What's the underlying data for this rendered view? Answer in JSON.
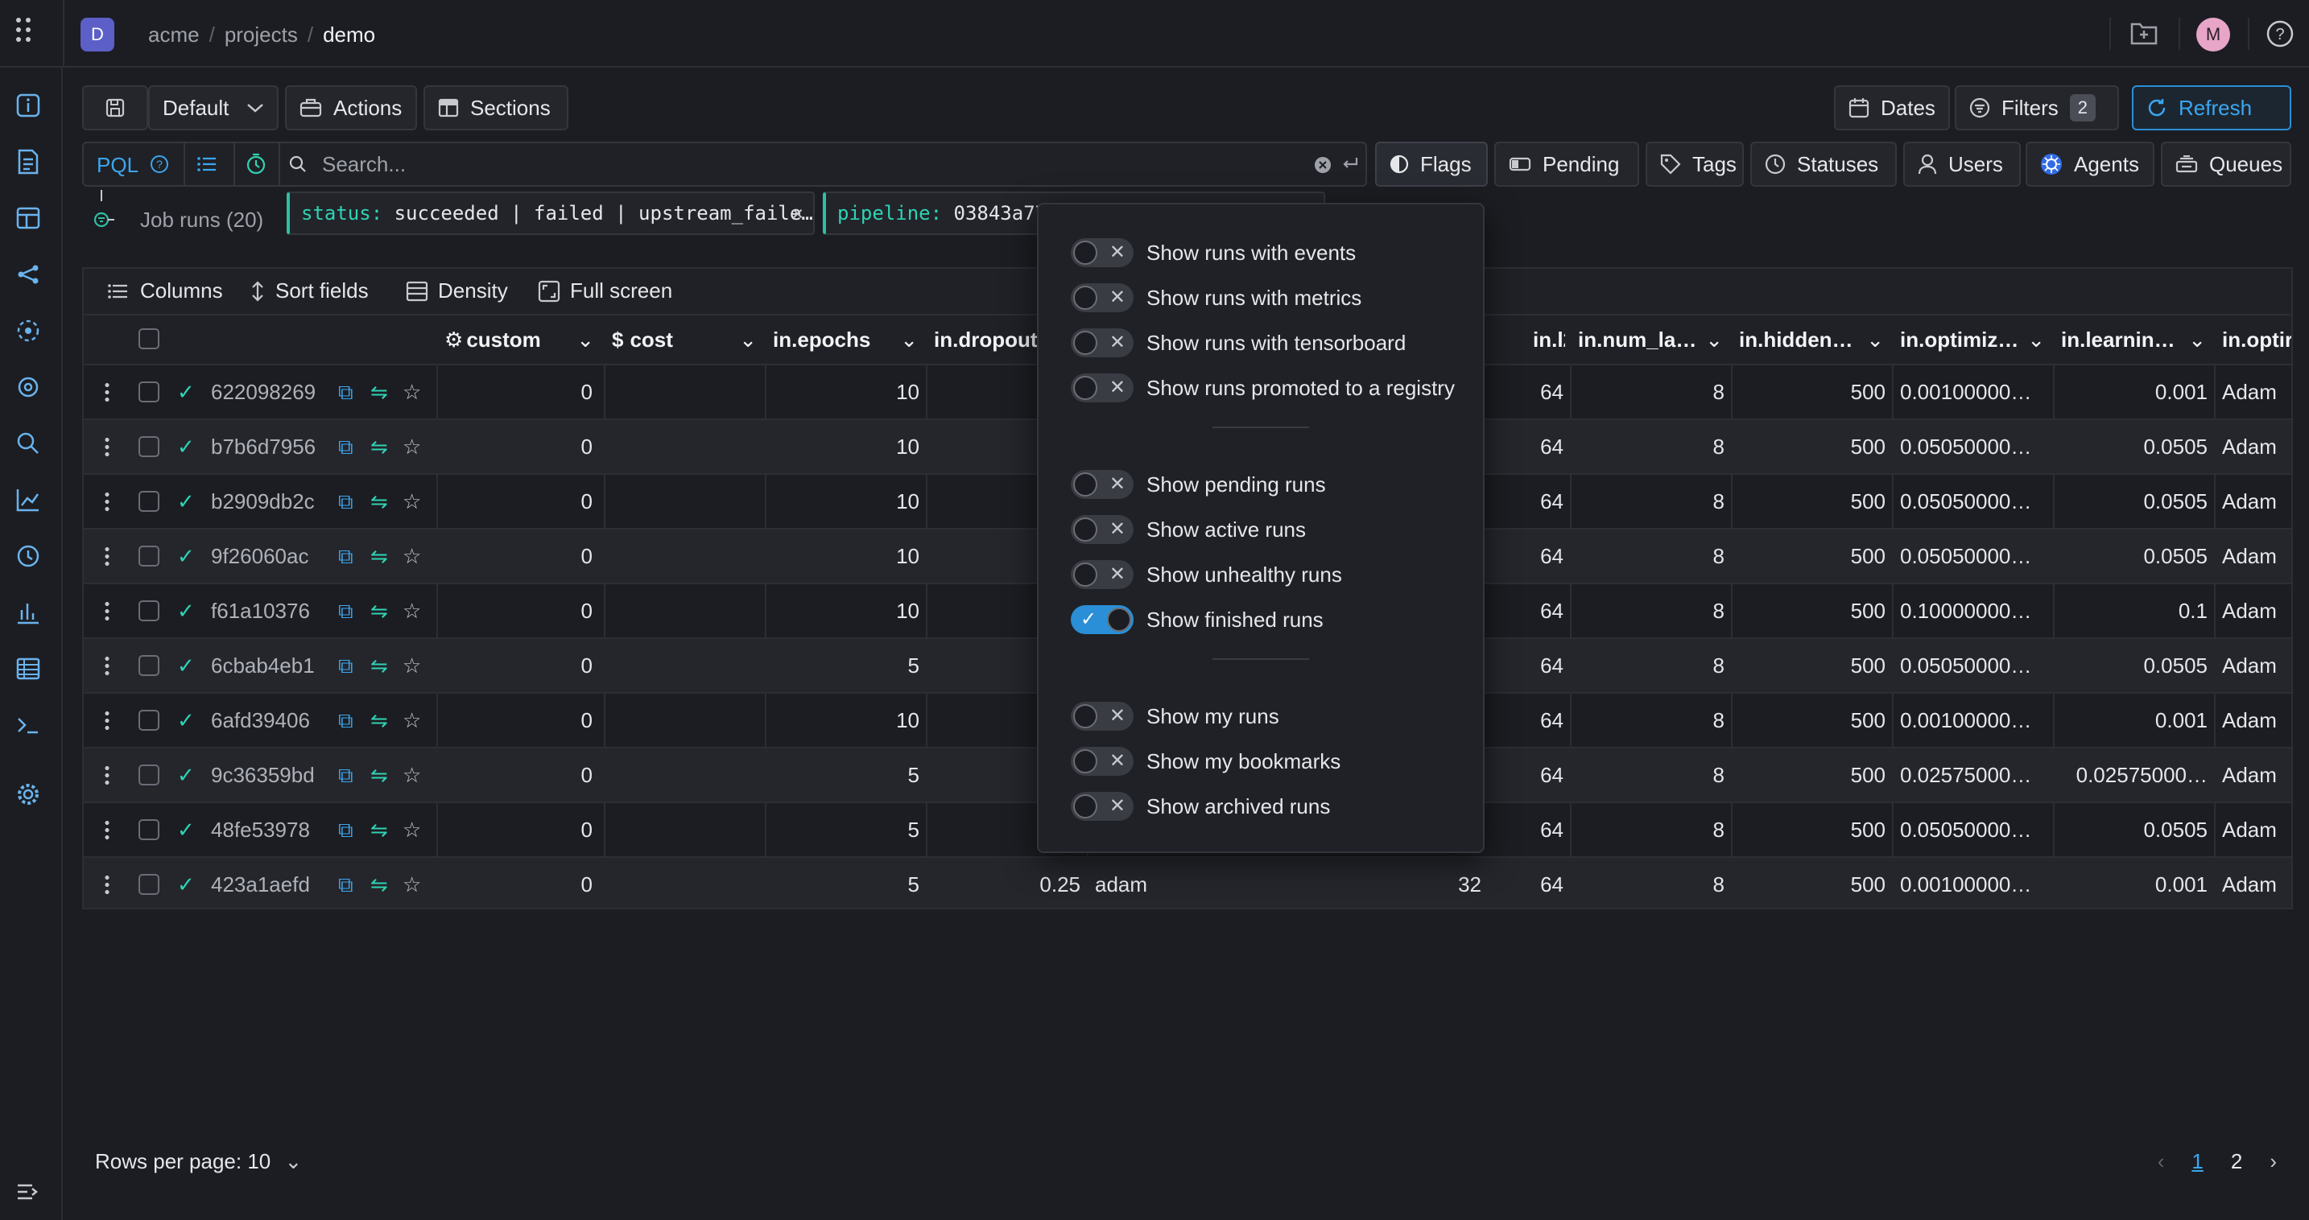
{
  "topbar": {
    "org_initial": "D",
    "breadcrumb": [
      "acme",
      "projects",
      "demo"
    ],
    "avatar_initial": "M"
  },
  "toolbar": {
    "default_label": "Default",
    "actions_label": "Actions",
    "sections_label": "Sections",
    "dates_label": "Dates",
    "filters_label": "Filters",
    "filters_count": "2",
    "refresh_label": "Refresh"
  },
  "search": {
    "pql_label": "PQL",
    "placeholder": "Search..."
  },
  "facets": {
    "flags": "Flags",
    "pending": "Pending",
    "tags": "Tags",
    "statuses": "Statuses",
    "users": "Users",
    "agents": "Agents",
    "queues": "Queues"
  },
  "filters_row": {
    "job_runs_label": "Job runs (20)",
    "chips": [
      {
        "key": "status:",
        "value": " succeeded | failed | upstream_faile…"
      },
      {
        "key": "pipeline:",
        "value": " 03843a77b"
      }
    ]
  },
  "table_toolbar": {
    "columns": "Columns",
    "sort_fields": "Sort fields",
    "density": "Density",
    "full_screen": "Full screen"
  },
  "table": {
    "headers": [
      "custom",
      "cost",
      "in.epochs",
      "in.dropout",
      "in.l2_…",
      "in.num_la…",
      "in.hidden…",
      "in.optimiz…",
      "in.learnin…",
      "in.optir"
    ],
    "rows": [
      {
        "id": "622098269",
        "custom": "0",
        "epochs": "10",
        "dropout": "",
        "optim": "",
        "batch": "",
        "l2": "64",
        "num_layers": "8",
        "hidden": "500",
        "optimizer_lr": "0.00100000…",
        "learning": "0.001",
        "opt": "Adam"
      },
      {
        "id": "b7b6d7956",
        "custom": "0",
        "epochs": "10",
        "dropout": "",
        "optim": "",
        "batch": "",
        "l2": "64",
        "num_layers": "8",
        "hidden": "500",
        "optimizer_lr": "0.05050000…",
        "learning": "0.0505",
        "opt": "Adam"
      },
      {
        "id": "b2909db2c",
        "custom": "0",
        "epochs": "10",
        "dropout": "",
        "optim": "",
        "batch": "",
        "l2": "64",
        "num_layers": "8",
        "hidden": "500",
        "optimizer_lr": "0.05050000…",
        "learning": "0.0505",
        "opt": "Adam"
      },
      {
        "id": "9f26060ac",
        "custom": "0",
        "epochs": "10",
        "dropout": "",
        "optim": "",
        "batch": "",
        "l2": "64",
        "num_layers": "8",
        "hidden": "500",
        "optimizer_lr": "0.05050000…",
        "learning": "0.0505",
        "opt": "Adam"
      },
      {
        "id": "f61a10376",
        "custom": "0",
        "epochs": "10",
        "dropout": "",
        "optim": "",
        "batch": "",
        "l2": "64",
        "num_layers": "8",
        "hidden": "500",
        "optimizer_lr": "0.10000000…",
        "learning": "0.1",
        "opt": "Adam"
      },
      {
        "id": "6cbab4eb1",
        "custom": "0",
        "epochs": "5",
        "dropout": "",
        "optim": "",
        "batch": "",
        "l2": "64",
        "num_layers": "8",
        "hidden": "500",
        "optimizer_lr": "0.05050000…",
        "learning": "0.0505",
        "opt": "Adam"
      },
      {
        "id": "6afd39406",
        "custom": "0",
        "epochs": "10",
        "dropout": "",
        "optim": "",
        "batch": "",
        "l2": "64",
        "num_layers": "8",
        "hidden": "500",
        "optimizer_lr": "0.00100000…",
        "learning": "0.001",
        "opt": "Adam"
      },
      {
        "id": "9c36359bd",
        "custom": "0",
        "epochs": "5",
        "dropout": "",
        "optim": "",
        "batch": "",
        "l2": "64",
        "num_layers": "8",
        "hidden": "500",
        "optimizer_lr": "0.02575000…",
        "learning": "0.02575000…",
        "opt": "Adam"
      },
      {
        "id": "48fe53978",
        "custom": "0",
        "epochs": "5",
        "dropout": "",
        "optim": "",
        "batch": "",
        "l2": "64",
        "num_layers": "8",
        "hidden": "500",
        "optimizer_lr": "0.05050000…",
        "learning": "0.0505",
        "opt": "Adam"
      },
      {
        "id": "423a1aefd",
        "custom": "0",
        "epochs": "5",
        "dropout": "0.25",
        "optim": "adam",
        "batch": "32",
        "l2": "64",
        "num_layers": "8",
        "hidden": "500",
        "optimizer_lr": "0.00100000…",
        "learning": "0.001",
        "opt": "Adam"
      }
    ]
  },
  "flags_menu": {
    "groups": [
      [
        {
          "label": "Show runs with events",
          "on": false
        },
        {
          "label": "Show runs with metrics",
          "on": false
        },
        {
          "label": "Show runs with tensorboard",
          "on": false
        },
        {
          "label": "Show runs promoted to a registry",
          "on": false
        }
      ],
      [
        {
          "label": "Show pending runs",
          "on": false
        },
        {
          "label": "Show active runs",
          "on": false
        },
        {
          "label": "Show unhealthy runs",
          "on": false
        },
        {
          "label": "Show finished runs",
          "on": true
        }
      ],
      [
        {
          "label": "Show my runs",
          "on": false
        },
        {
          "label": "Show my bookmarks",
          "on": false
        },
        {
          "label": "Show archived runs",
          "on": false
        }
      ]
    ]
  },
  "footer": {
    "rows_per_page": "Rows per page: 10",
    "pages": [
      "1",
      "2"
    ],
    "current_page": "1"
  },
  "colors": {
    "accent": "#3ba6f0",
    "success": "#2fd3b4",
    "background": "#1c1d22"
  }
}
